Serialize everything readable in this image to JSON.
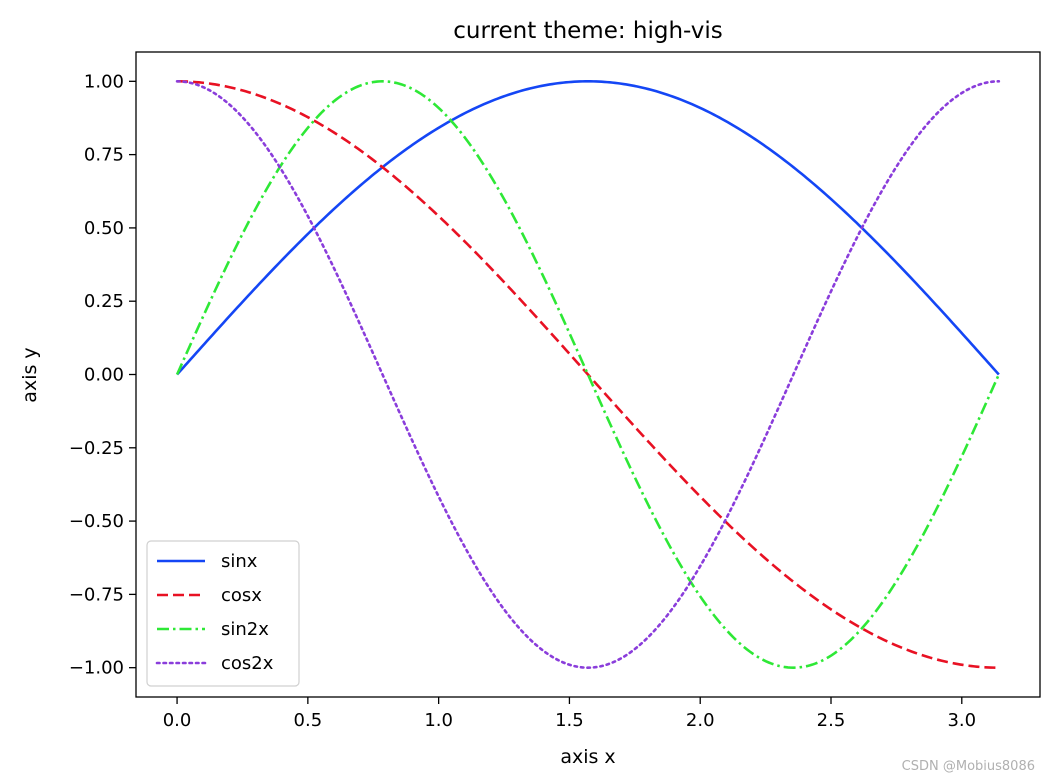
{
  "chart_data": {
    "type": "line",
    "title": "current theme: high-vis",
    "xlabel": "axis x",
    "ylabel": "axis y",
    "xlim": [
      -0.157,
      3.299
    ],
    "ylim": [
      -1.1,
      1.1
    ],
    "x_range": [
      0,
      3.14159
    ],
    "xticks": [
      0.0,
      0.5,
      1.0,
      1.5,
      2.0,
      2.5,
      3.0
    ],
    "xtick_labels": [
      "0.0",
      "0.5",
      "1.0",
      "1.5",
      "2.0",
      "2.5",
      "3.0"
    ],
    "yticks": [
      1.0,
      0.75,
      0.5,
      0.25,
      0.0,
      -0.25,
      -0.5,
      -0.75,
      -1.0
    ],
    "ytick_labels": [
      "1.00",
      "0.75",
      "0.50",
      "0.25",
      "0.00",
      "−0.25",
      "−0.50",
      "−0.75",
      "−1.00"
    ],
    "grid": false,
    "legend_position": "lower-left",
    "series": [
      {
        "name": "sinx",
        "function": "sin(x)",
        "color": "#1446f5",
        "style": "solid"
      },
      {
        "name": "cosx",
        "function": "cos(x)",
        "color": "#e81123",
        "style": "dashed"
      },
      {
        "name": "sin2x",
        "function": "sin(2x)",
        "color": "#2ee836",
        "style": "dashdot"
      },
      {
        "name": "cos2x",
        "function": "cos(2x)",
        "color": "#8a3ddb",
        "style": "dotted"
      }
    ]
  },
  "watermark": "CSDN @Mobius8086"
}
